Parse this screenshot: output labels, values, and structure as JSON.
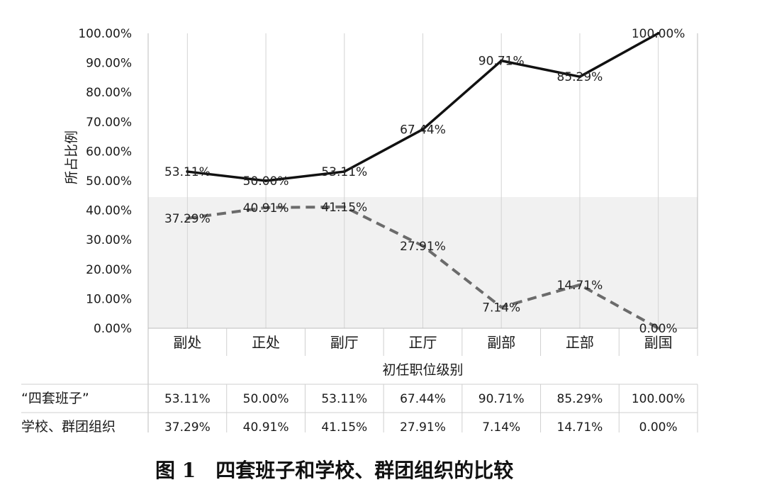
{
  "chart_data": {
    "type": "line",
    "categories": [
      "副处",
      "正处",
      "副厅",
      "正厅",
      "副部",
      "正部",
      "副国"
    ],
    "series": [
      {
        "name": "“四套班子”",
        "values": [
          53.11,
          50.0,
          53.11,
          67.44,
          90.71,
          85.29,
          100.0
        ],
        "labels": [
          "53.11%",
          "50.00%",
          "53.11%",
          "67.44%",
          "90.71%",
          "85.29%",
          "100.00%"
        ],
        "style": "solid",
        "color": "#111111"
      },
      {
        "name": "学校、群团组织",
        "values": [
          37.29,
          40.91,
          41.15,
          27.91,
          7.14,
          14.71,
          0.0
        ],
        "labels": [
          "37.29%",
          "40.91%",
          "41.15%",
          "27.91%",
          "7.14%",
          "14.71%",
          "0.00%"
        ],
        "style": "dashed",
        "color": "#6b6b6b"
      }
    ],
    "xlabel": "初任职位级别",
    "ylabel": "所占比例",
    "ylim": [
      0,
      100
    ],
    "yticks": [
      "0.00%",
      "10.00%",
      "20.00%",
      "30.00%",
      "40.00%",
      "50.00%",
      "60.00%",
      "70.00%",
      "80.00%",
      "90.00%",
      "100.00%"
    ],
    "grid": "vertical",
    "data_table": true,
    "caption": "图 1　四套班子和学校、群团组织的比较"
  }
}
